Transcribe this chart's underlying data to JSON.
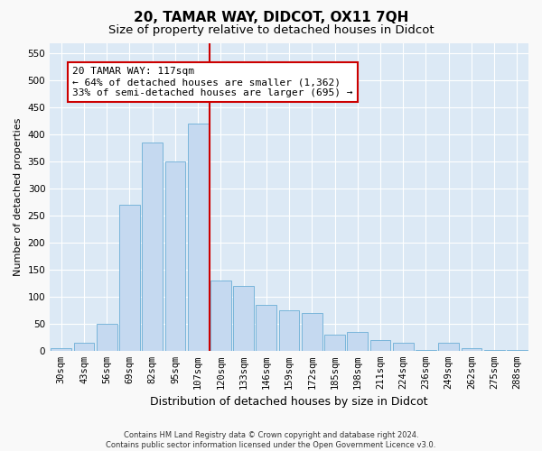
{
  "title": "20, TAMAR WAY, DIDCOT, OX11 7QH",
  "subtitle": "Size of property relative to detached houses in Didcot",
  "xlabel": "Distribution of detached houses by size in Didcot",
  "ylabel": "Number of detached properties",
  "footer_line1": "Contains HM Land Registry data © Crown copyright and database right 2024.",
  "footer_line2": "Contains public sector information licensed under the Open Government Licence v3.0.",
  "categories": [
    "30sqm",
    "43sqm",
    "56sqm",
    "69sqm",
    "82sqm",
    "95sqm",
    "107sqm",
    "120sqm",
    "133sqm",
    "146sqm",
    "159sqm",
    "172sqm",
    "185sqm",
    "198sqm",
    "211sqm",
    "224sqm",
    "236sqm",
    "249sqm",
    "262sqm",
    "275sqm",
    "288sqm"
  ],
  "values": [
    5,
    15,
    50,
    270,
    385,
    350,
    420,
    130,
    120,
    85,
    75,
    70,
    30,
    35,
    20,
    15,
    2,
    15,
    5,
    2,
    2
  ],
  "bar_color": "#c5d9f0",
  "bar_edge_color": "#6baed6",
  "property_size_label": "20 TAMAR WAY: 117sqm",
  "annotation_line1": "← 64% of detached houses are smaller (1,362)",
  "annotation_line2": "33% of semi-detached houses are larger (695) →",
  "vline_color": "#cc0000",
  "annotation_box_color": "#ffffff",
  "annotation_box_edge": "#cc0000",
  "ylim": [
    0,
    570
  ],
  "yticks": [
    0,
    50,
    100,
    150,
    200,
    250,
    300,
    350,
    400,
    450,
    500,
    550
  ],
  "fig_bg_color": "#f9f9f9",
  "plot_bg_color": "#dce9f5",
  "grid_color": "#ffffff",
  "title_fontsize": 11,
  "subtitle_fontsize": 9.5,
  "xlabel_fontsize": 9,
  "ylabel_fontsize": 8,
  "tick_fontsize": 7.5,
  "annotation_fontsize": 8,
  "footer_fontsize": 6
}
